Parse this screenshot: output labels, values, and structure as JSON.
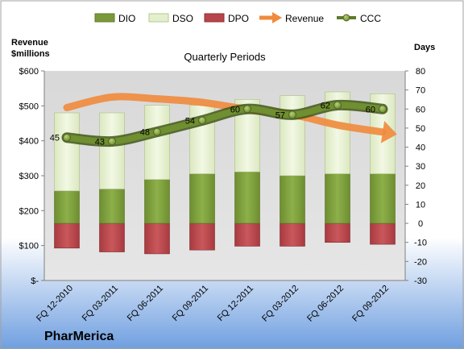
{
  "brand": "PharMerica",
  "chart_data": {
    "type": "bar",
    "title": "Quarterly Periods",
    "y_left_label_line1": "Revenue",
    "y_left_label_line2": "$millions",
    "y_right_label": "Days",
    "categories": [
      "FQ 12-2010",
      "FQ 03-2011",
      "FQ 06-2011",
      "FQ 09-2011",
      "FQ 12-2011",
      "FQ 03-2012",
      "FQ 06-2012",
      "FQ 09-2012"
    ],
    "y_left": {
      "min": 0,
      "max": 600,
      "ticks": [
        0,
        100,
        200,
        300,
        400,
        500,
        600
      ],
      "tick_labels": [
        "$-",
        "$100",
        "$200",
        "$300",
        "$400",
        "$500",
        "$600"
      ]
    },
    "y_right": {
      "min": -30,
      "max": 80,
      "ticks": [
        -30,
        -20,
        -10,
        0,
        10,
        20,
        30,
        40,
        50,
        60,
        70,
        80
      ]
    },
    "series": [
      {
        "name": "DIO",
        "kind": "stacked-bar",
        "axis": "right",
        "values": [
          17,
          18,
          23,
          26,
          27,
          25,
          26,
          26
        ]
      },
      {
        "name": "DSO",
        "kind": "stacked-bar",
        "axis": "right",
        "values": [
          41,
          40,
          39,
          36,
          38,
          42,
          43,
          42
        ]
      },
      {
        "name": "DPO",
        "kind": "negative-bar",
        "axis": "right",
        "values": [
          -13,
          -15,
          -16,
          -14,
          -12,
          -12,
          -10,
          -11
        ]
      },
      {
        "name": "Revenue",
        "kind": "trend-arrow",
        "axis": "left",
        "values": [
          495,
          525,
          520,
          510,
          490,
          475,
          445,
          425
        ]
      },
      {
        "name": "CCC",
        "kind": "line",
        "axis": "right",
        "values": [
          45,
          43,
          48,
          54,
          60,
          57,
          62,
          60
        ]
      }
    ],
    "legend_position": "top",
    "grid": false
  },
  "colors": {
    "dio": "#7a9a3a",
    "dso": "#e4efcd",
    "dpo": "#b8454a",
    "revenue": "#f08a3c",
    "ccc": "#5f7a2a",
    "plot_bg": "#d9d9d9",
    "bottom_band": "#6f9fe0"
  }
}
